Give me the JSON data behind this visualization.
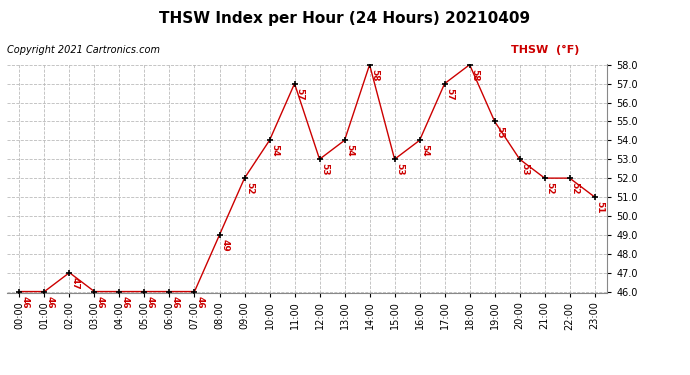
{
  "title": "THSW Index per Hour (24 Hours) 20210409",
  "copyright": "Copyright 2021 Cartronics.com",
  "legend_label": "THSW  (°F)",
  "hours": [
    "00:00",
    "01:00",
    "02:00",
    "03:00",
    "04:00",
    "05:00",
    "06:00",
    "07:00",
    "08:00",
    "09:00",
    "10:00",
    "11:00",
    "12:00",
    "13:00",
    "14:00",
    "15:00",
    "16:00",
    "17:00",
    "18:00",
    "19:00",
    "20:00",
    "21:00",
    "22:00",
    "23:00"
  ],
  "values": [
    46,
    46,
    47,
    46,
    46,
    46,
    46,
    46,
    49,
    52,
    54,
    57,
    53,
    54,
    58,
    53,
    54,
    57,
    58,
    55,
    53,
    52,
    52,
    51
  ],
  "line_color": "#cc0000",
  "marker_color": "#000000",
  "background_color": "#ffffff",
  "grid_color": "#bbbbbb",
  "ylim_min": 46.0,
  "ylim_max": 58.0,
  "ytick_step": 1.0,
  "title_fontsize": 11,
  "copyright_fontsize": 7,
  "legend_fontsize": 8,
  "label_fontsize": 6.5,
  "tick_fontsize": 7
}
